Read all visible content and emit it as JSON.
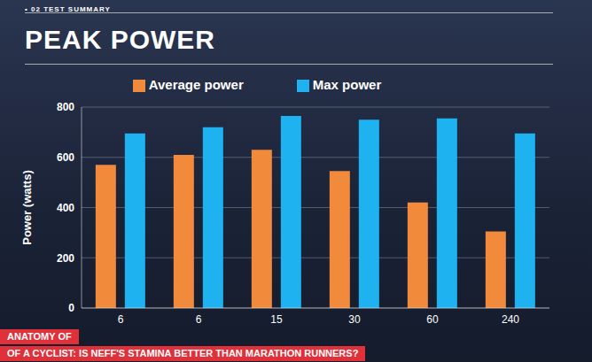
{
  "chart_data": {
    "type": "bar",
    "title": "PEAK POWER",
    "subtitle": "• 02 TEST SUMMARY",
    "y_label": "Power (watts)",
    "categories": [
      "6",
      "6",
      "15",
      "30",
      "60",
      "240"
    ],
    "series": [
      {
        "name": "Average power",
        "color": "#f28a3c",
        "values": [
          570,
          610,
          630,
          545,
          420,
          305
        ]
      },
      {
        "name": "Max power",
        "color": "#1fb2f0",
        "values": [
          695,
          720,
          765,
          750,
          755,
          695
        ]
      }
    ],
    "ylim": [
      0,
      800
    ],
    "yticks": [
      0,
      200,
      400,
      600,
      800
    ],
    "grid": true,
    "legend": "top",
    "annotations": [
      "ANATOMY OF",
      "OF A CYCLIST: IS NEFF'S STAMINA BETTER THAN MARATHON RUNNERS?"
    ]
  }
}
